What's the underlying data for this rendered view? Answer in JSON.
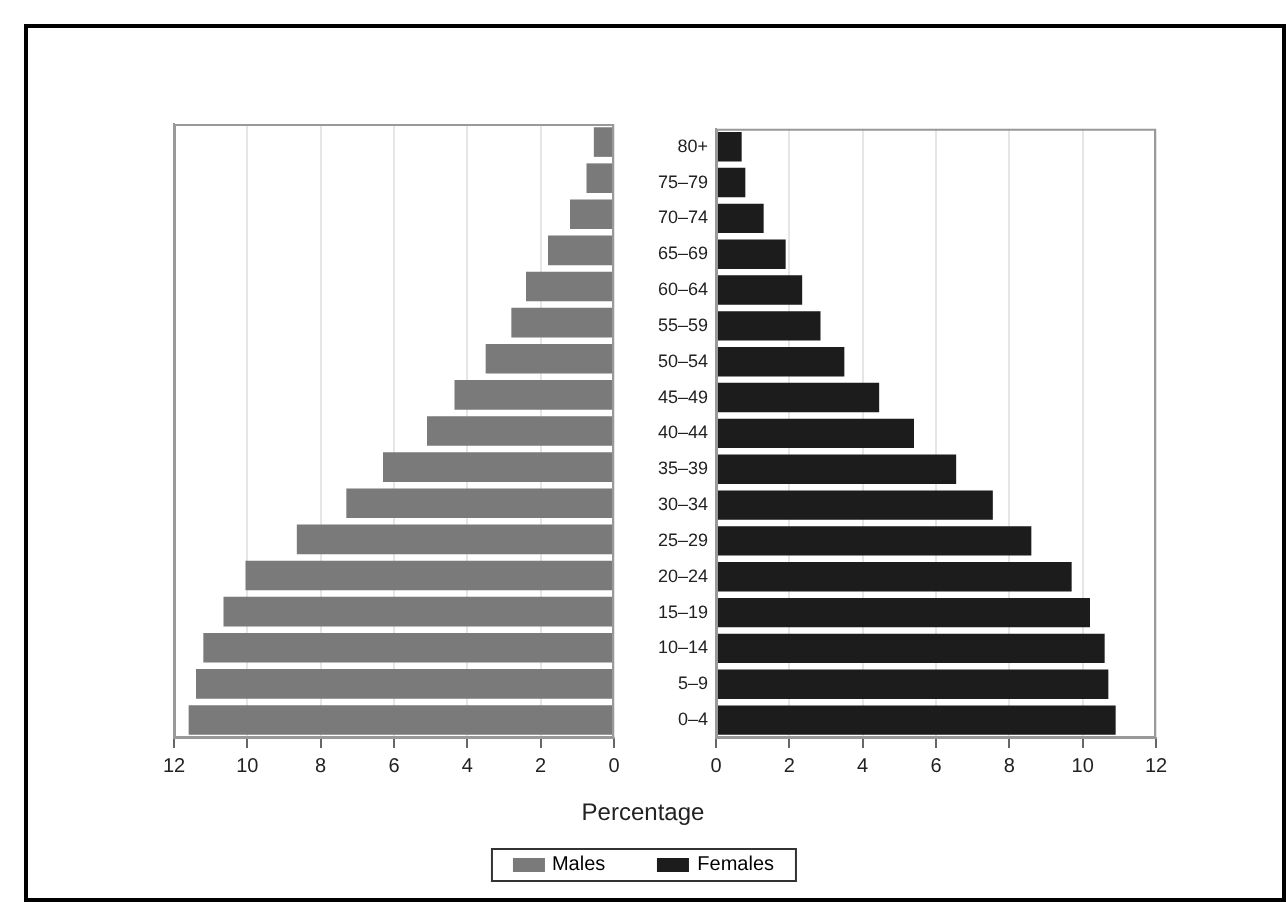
{
  "chart_data": [
    {
      "type": "bar",
      "orientation": "horizontal",
      "categories": [
        null,
        null,
        null,
        null,
        null,
        null,
        null,
        null,
        null,
        null,
        null,
        null,
        null,
        null,
        null,
        null,
        null
      ],
      "series": [
        {
          "name": "Males",
          "color": "#7a7a7a",
          "values": [
            0.55,
            0.75,
            1.2,
            1.8,
            2.4,
            2.8,
            3.5,
            4.35,
            5.1,
            6.3,
            7.3,
            8.65,
            10.05,
            10.65,
            11.2,
            11.4,
            11.6
          ]
        }
      ],
      "xlim": [
        12,
        0
      ],
      "xticks": [
        12,
        10,
        8,
        6,
        4,
        2,
        0
      ],
      "grid": "x",
      "tick_labels": "x",
      "legend": "bottom"
    },
    {
      "type": "bar",
      "orientation": "horizontal",
      "categories": [
        "80+",
        "75–79",
        "70–74",
        "65–69",
        "60–64",
        "55–59",
        "50–54",
        "45–49",
        "40–44",
        "35–39",
        "30–34",
        "25–29",
        "20–24",
        "15–19",
        "10–14",
        "5–9",
        "0–4"
      ],
      "series": [
        {
          "name": "Females",
          "color": "#1c1c1c",
          "values": [
            0.7,
            0.8,
            1.3,
            1.9,
            2.35,
            2.85,
            3.5,
            4.45,
            5.4,
            6.55,
            7.55,
            8.6,
            9.7,
            10.2,
            10.6,
            10.7,
            10.9
          ]
        }
      ],
      "xlim": [
        0,
        12
      ],
      "xticks": [
        0,
        2,
        4,
        6,
        8,
        10,
        12
      ],
      "grid": "x",
      "xlabel": "Percentage",
      "legend": "bottom"
    }
  ]
}
